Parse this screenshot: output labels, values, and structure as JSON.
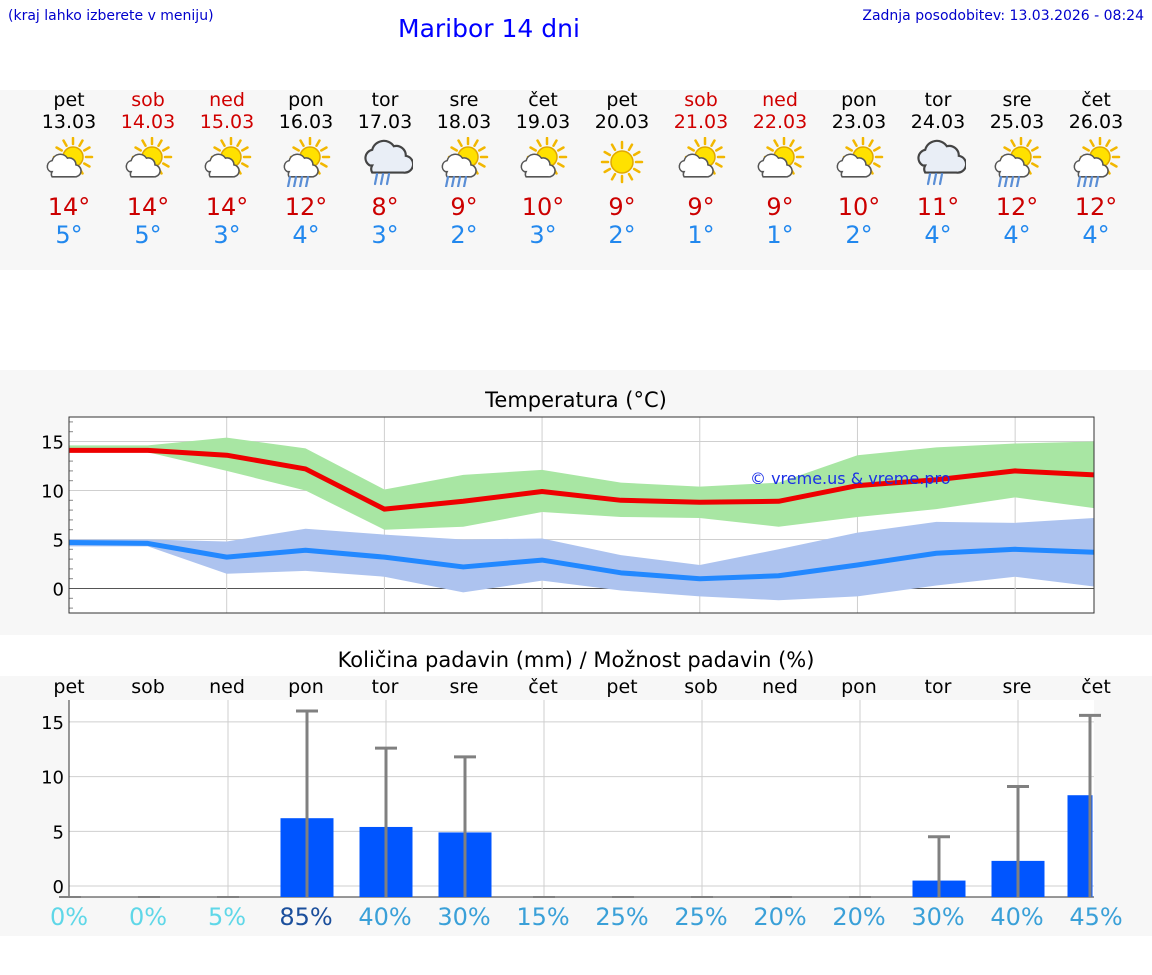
{
  "header": {
    "hint": "(kraj lahko izberete v meniju)",
    "title": "Maribor 14 dni",
    "updated": "Zadnja posodobitev: 13.03.2026 - 08:24"
  },
  "days": [
    {
      "name": "pet",
      "date": "13.03",
      "weekend": false,
      "icon": "sun-cloud-icon",
      "tmax": "14°",
      "tmin": "5°"
    },
    {
      "name": "sob",
      "date": "14.03",
      "weekend": true,
      "icon": "sun-cloud-icon",
      "tmax": "14°",
      "tmin": "5°"
    },
    {
      "name": "ned",
      "date": "15.03",
      "weekend": true,
      "icon": "sun-cloud-icon",
      "tmax": "14°",
      "tmin": "3°"
    },
    {
      "name": "pon",
      "date": "16.03",
      "weekend": false,
      "icon": "sun-rain-icon",
      "tmax": "12°",
      "tmin": "4°"
    },
    {
      "name": "tor",
      "date": "17.03",
      "weekend": false,
      "icon": "cloud-rain-icon",
      "tmax": "8°",
      "tmin": "3°"
    },
    {
      "name": "sre",
      "date": "18.03",
      "weekend": false,
      "icon": "sun-rain-icon",
      "tmax": "9°",
      "tmin": "2°"
    },
    {
      "name": "čet",
      "date": "19.03",
      "weekend": false,
      "icon": "sun-cloud-icon",
      "tmax": "10°",
      "tmin": "3°"
    },
    {
      "name": "pet",
      "date": "20.03",
      "weekend": false,
      "icon": "sun-icon",
      "tmax": "9°",
      "tmin": "2°"
    },
    {
      "name": "sob",
      "date": "21.03",
      "weekend": true,
      "icon": "sun-cloud-icon",
      "tmax": "9°",
      "tmin": "1°"
    },
    {
      "name": "ned",
      "date": "22.03",
      "weekend": true,
      "icon": "sun-cloud-icon",
      "tmax": "9°",
      "tmin": "1°"
    },
    {
      "name": "pon",
      "date": "23.03",
      "weekend": false,
      "icon": "sun-cloud-icon",
      "tmax": "10°",
      "tmin": "2°"
    },
    {
      "name": "tor",
      "date": "24.03",
      "weekend": false,
      "icon": "cloud-rain-icon",
      "tmax": "11°",
      "tmin": "4°"
    },
    {
      "name": "sre",
      "date": "25.03",
      "weekend": false,
      "icon": "sun-rain-icon",
      "tmax": "12°",
      "tmin": "4°"
    },
    {
      "name": "čet",
      "date": "26.03",
      "weekend": false,
      "icon": "sun-rain-icon",
      "tmax": "12°",
      "tmin": "4°"
    }
  ],
  "colors": {
    "max_line": "#ee0000",
    "max_band": "#a8e6a3",
    "min_line": "#2288ff",
    "min_band": "#adc3ef",
    "precip_bar": "#0055ff",
    "error_bar": "#808080"
  },
  "chart_data": [
    {
      "type": "line",
      "title": "Temperatura (°C)",
      "watermark": "© vreme.us & vreme.pro",
      "ylim": [
        -2.5,
        17.5
      ],
      "yticks": [
        "0",
        "5",
        "10",
        "15"
      ],
      "x": [
        0,
        1,
        2,
        3,
        4,
        5,
        6,
        7,
        8,
        9,
        10,
        11,
        12,
        13
      ],
      "series": [
        {
          "name": "max",
          "values": [
            14.1,
            14.1,
            13.6,
            12.2,
            8.1,
            8.9,
            9.9,
            9.0,
            8.8,
            8.9,
            10.5,
            11.1,
            12.0,
            11.6
          ],
          "band_low": [
            13.9,
            13.9,
            12.0,
            10.0,
            6.0,
            6.3,
            7.8,
            7.3,
            7.2,
            6.3,
            7.3,
            8.1,
            9.3,
            8.2
          ],
          "band_high": [
            14.6,
            14.6,
            15.4,
            14.3,
            10.1,
            11.6,
            12.1,
            10.8,
            10.4,
            10.8,
            13.6,
            14.4,
            14.8,
            15.0
          ]
        },
        {
          "name": "min",
          "values": [
            4.7,
            4.6,
            3.2,
            3.9,
            3.2,
            2.2,
            2.9,
            1.6,
            1.0,
            1.3,
            2.4,
            3.6,
            4.0,
            3.7
          ],
          "band_low": [
            4.3,
            4.3,
            1.5,
            1.8,
            1.2,
            -0.4,
            0.8,
            -0.2,
            -0.8,
            -1.2,
            -0.8,
            0.3,
            1.2,
            0.2
          ],
          "band_high": [
            5.0,
            5.0,
            4.8,
            6.1,
            5.5,
            5.0,
            5.1,
            3.4,
            2.4,
            4.0,
            5.7,
            6.8,
            6.7,
            7.2
          ]
        }
      ]
    },
    {
      "type": "bar",
      "title": "Količina padavin (mm) / Možnost padavin (%)",
      "ylim": [
        -1,
        17
      ],
      "yticks": [
        "0",
        "5",
        "10",
        "15"
      ],
      "categories": [
        "pet",
        "sob",
        "ned",
        "pon",
        "tor",
        "sre",
        "čet",
        "pet",
        "sob",
        "ned",
        "pon",
        "tor",
        "sre",
        "čet"
      ],
      "values": [
        0,
        0,
        0,
        6.2,
        5.4,
        4.9,
        0,
        0,
        0,
        0,
        0,
        0.5,
        2.3,
        8.3
      ],
      "error_high": [
        0,
        0,
        0,
        16.0,
        12.6,
        11.8,
        0,
        0,
        0,
        0,
        0,
        4.5,
        9.1,
        15.6
      ],
      "probability": [
        "0%",
        "0%",
        "5%",
        "85%",
        "40%",
        "30%",
        "15%",
        "25%",
        "25%",
        "20%",
        "20%",
        "30%",
        "40%",
        "45%"
      ],
      "prob_values": [
        0,
        0,
        5,
        85,
        40,
        30,
        15,
        25,
        25,
        20,
        20,
        30,
        40,
        45
      ]
    }
  ]
}
